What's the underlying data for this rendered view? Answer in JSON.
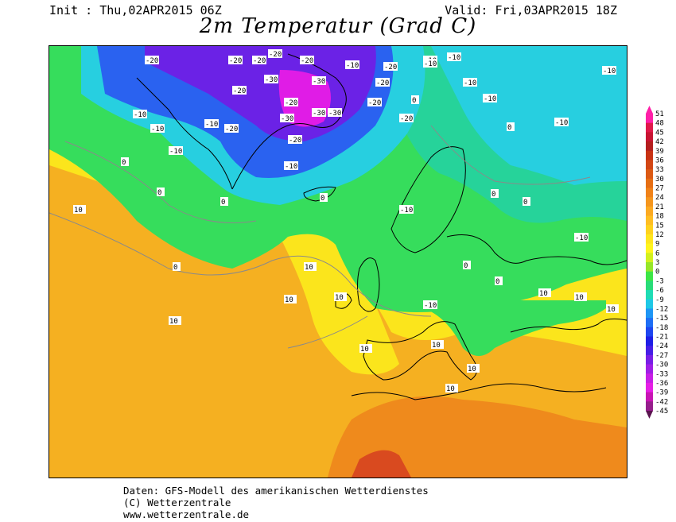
{
  "header": {
    "init": "Init : Thu,02APR2015 06Z",
    "valid": "Valid: Fri,03APR2015 18Z",
    "title": "2m Temperatur (Grad C)"
  },
  "footer": {
    "line1": "Daten: GFS-Modell des amerikanischen Wetterdienstes",
    "line2": "(C) Wetterzentrale",
    "line3": "www.wetterzentrale.de"
  },
  "legend": {
    "levels": [
      "51",
      "48",
      "45",
      "42",
      "39",
      "36",
      "33",
      "30",
      "27",
      "24",
      "21",
      "18",
      "15",
      "12",
      "9",
      "6",
      "3",
      "0",
      "-3",
      "-6",
      "-9",
      "-12",
      "-15",
      "-18",
      "-21",
      "-24",
      "-27",
      "-30",
      "-33",
      "-36",
      "-39",
      "-42",
      "-45"
    ],
    "colors": [
      "#ff1fa8",
      "#e0184a",
      "#c81432",
      "#b41e1e",
      "#c83214",
      "#d24614",
      "#dc5a14",
      "#e66e14",
      "#f08219",
      "#f5961e",
      "#fcaa22",
      "#ffbe23",
      "#ffd21e",
      "#ffe61e",
      "#fff51e",
      "#d2f01e",
      "#96e628",
      "#3ce646",
      "#28dc78",
      "#1edcb4",
      "#1ec8e6",
      "#1e96f5",
      "#1e6ef5",
      "#1e46f0",
      "#1e1ee6",
      "#461ee6",
      "#781ee6",
      "#a01ee6",
      "#c81ee6",
      "#e61ee6",
      "#c814b4",
      "#961e8c",
      "#5a1450"
    ]
  },
  "map": {
    "contour_labels": [
      "-20",
      "-10",
      "0",
      "10",
      "-30"
    ],
    "colors": {
      "orange_warm": "#f5b021",
      "orange_hot": "#ef8a1c",
      "red_hot": "#d94a1f",
      "yellow": "#fbe51c",
      "yellow_green": "#cfe81a",
      "green": "#36dd5c",
      "teal": "#26d39a",
      "cyan": "#27cfe0",
      "blue": "#2a62f0",
      "purple": "#6b22e6",
      "magenta": "#e01ce6",
      "coast": "#000000"
    }
  }
}
